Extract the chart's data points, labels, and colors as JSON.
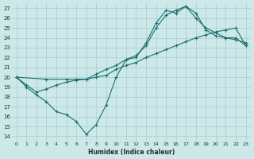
{
  "xlabel": "Humidex (Indice chaleur)",
  "background_color": "#cce8e8",
  "grid_color": "#aacccc",
  "line_color": "#1a7070",
  "xlim": [
    -0.5,
    23.5
  ],
  "ylim": [
    13.5,
    27.5
  ],
  "xticks": [
    0,
    1,
    2,
    3,
    4,
    5,
    6,
    7,
    8,
    9,
    10,
    11,
    12,
    13,
    14,
    15,
    16,
    17,
    18,
    19,
    20,
    21,
    22,
    23
  ],
  "yticks": [
    14,
    15,
    16,
    17,
    18,
    19,
    20,
    21,
    22,
    23,
    24,
    25,
    26,
    27
  ],
  "line1_x": [
    0,
    1,
    2,
    3,
    4,
    5,
    6,
    7,
    8,
    9,
    10,
    11,
    12,
    13,
    14,
    15,
    16,
    17,
    18,
    19,
    20,
    21,
    22,
    23
  ],
  "line1_y": [
    20,
    19,
    18.2,
    17.5,
    16.5,
    16.2,
    15.5,
    14.2,
    15.2,
    17.2,
    20,
    21.8,
    22,
    23.5,
    25.5,
    26.8,
    26.5,
    27.2,
    26.0,
    25.0,
    24.5,
    24.0,
    24.0,
    23.2
  ],
  "line2_x": [
    0,
    3,
    5,
    6,
    7,
    8,
    9,
    10,
    11,
    12,
    13,
    14,
    15,
    16,
    17,
    18,
    19,
    20,
    21,
    22,
    23
  ],
  "line2_y": [
    20,
    19.8,
    19.8,
    19.8,
    19.8,
    20.0,
    20.2,
    20.8,
    21.2,
    21.5,
    22.0,
    22.4,
    22.8,
    23.2,
    23.6,
    24.0,
    24.3,
    24.6,
    24.8,
    25.0,
    23.2
  ],
  "line3_x": [
    0,
    1,
    2,
    3,
    4,
    5,
    6,
    7,
    8,
    9,
    10,
    11,
    12,
    13,
    14,
    15,
    16,
    17,
    18,
    19,
    20,
    21,
    22,
    23
  ],
  "line3_y": [
    20,
    19.2,
    18.5,
    18.8,
    19.2,
    19.5,
    19.7,
    19.8,
    20.3,
    20.8,
    21.2,
    21.8,
    22.2,
    23.2,
    25.0,
    26.3,
    26.8,
    27.2,
    26.5,
    24.8,
    24.2,
    24.0,
    23.8,
    23.5
  ]
}
